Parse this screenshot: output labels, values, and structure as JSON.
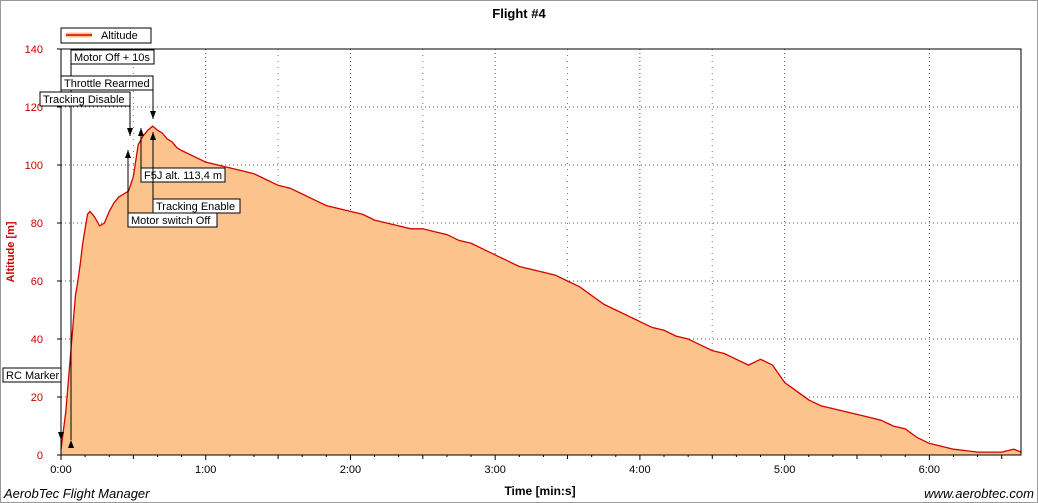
{
  "footer": {
    "left": "AerobTec Flight Manager",
    "right": "www.aerobtec.com"
  },
  "colors": {
    "line": "#d40000",
    "fill": "#fcc38c",
    "axis_text": "#cc0000"
  },
  "chart_data": {
    "type": "area",
    "title": "Flight #4",
    "xlabel": "Time [min:s]",
    "ylabel": "Altitude [m]",
    "xlim": [
      0,
      398
    ],
    "ylim": [
      0,
      140
    ],
    "x_ticks": [
      0,
      60,
      120,
      180,
      240,
      300,
      360
    ],
    "x_tick_labels": [
      "0:00",
      "1:00",
      "2:00",
      "3:00",
      "4:00",
      "5:00",
      "6:00"
    ],
    "y_ticks": [
      0,
      20,
      40,
      60,
      80,
      100,
      120,
      140
    ],
    "y_tick_labels": [
      "0",
      "20",
      "40",
      "60",
      "80",
      "100",
      "120",
      "140"
    ],
    "grid": true,
    "legend_position": "top-left",
    "series": [
      {
        "name": "Altitude",
        "x": [
          0,
          2,
          4,
          5,
          6,
          7,
          8,
          9,
          10,
          11,
          12,
          14,
          16,
          18,
          20,
          22,
          24,
          26,
          28,
          30,
          32,
          34,
          36,
          38,
          40,
          42,
          44,
          46,
          48,
          50,
          55,
          60,
          65,
          70,
          75,
          80,
          85,
          90,
          95,
          100,
          105,
          110,
          115,
          120,
          125,
          130,
          135,
          140,
          145,
          150,
          155,
          160,
          165,
          170,
          175,
          180,
          185,
          190,
          195,
          200,
          205,
          210,
          215,
          220,
          225,
          230,
          235,
          240,
          245,
          250,
          255,
          260,
          265,
          270,
          275,
          280,
          285,
          290,
          295,
          300,
          305,
          310,
          315,
          320,
          325,
          330,
          335,
          340,
          345,
          350,
          355,
          360,
          365,
          370,
          375,
          380,
          385,
          390,
          395,
          398
        ],
        "y": [
          2,
          15,
          35,
          45,
          55,
          60,
          66,
          73,
          78,
          83,
          84,
          82,
          79,
          80,
          84,
          87,
          89,
          90,
          91,
          96,
          107,
          110,
          112,
          113.4,
          112,
          111,
          109,
          108,
          106,
          105,
          103,
          101,
          100,
          99,
          98,
          97,
          95,
          93,
          92,
          90,
          88,
          86,
          85,
          84,
          83,
          81,
          80,
          79,
          78,
          78,
          77,
          76,
          74,
          73,
          71,
          69,
          67,
          65,
          64,
          63,
          62,
          60,
          58,
          55,
          52,
          50,
          48,
          46,
          44,
          43,
          41,
          40,
          38,
          36,
          35,
          33,
          31,
          33,
          31,
          25,
          22,
          19,
          17,
          16,
          15,
          14,
          13,
          12,
          10,
          9,
          6,
          4,
          3,
          2,
          1.5,
          1,
          1,
          1,
          2,
          1
        ]
      }
    ],
    "annotations": [
      {
        "label": "RC Marker",
        "x": 0,
        "y": 4,
        "arrow": "down"
      },
      {
        "label": "Motor Off + 10s",
        "x": 38,
        "y": 113.4,
        "arrow": "up"
      },
      {
        "label": "Throttle Rearmed",
        "x": 38,
        "y": 113.4,
        "arrow": "down"
      },
      {
        "label": "Tracking Disable",
        "x": 28,
        "y": 109,
        "arrow": "down"
      },
      {
        "label": "F5J alt. 113,4 m",
        "x": 34,
        "y": 113.4,
        "arrow": "up"
      },
      {
        "label": "Tracking Enable",
        "x": 38,
        "y": 111,
        "arrow": "up"
      },
      {
        "label": "Motor switch Off",
        "x": 28,
        "y": 105,
        "arrow": "up"
      }
    ]
  }
}
